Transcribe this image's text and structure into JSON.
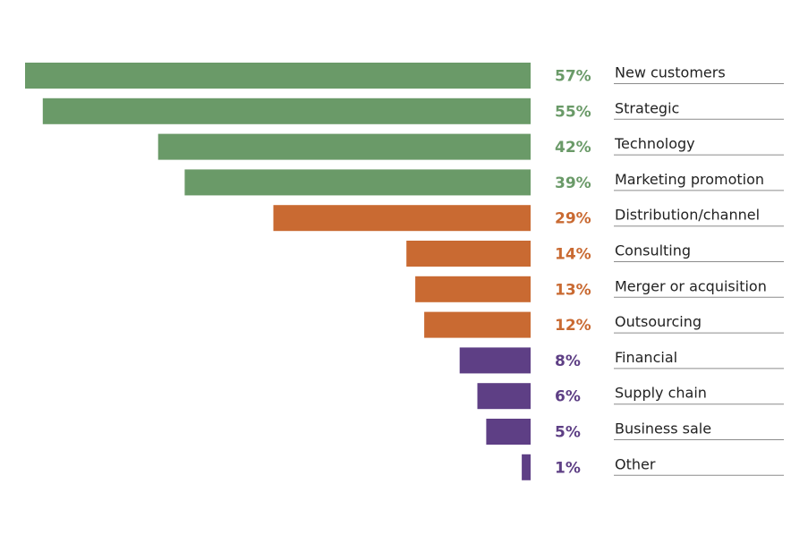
{
  "chart_data": {
    "type": "bar",
    "orientation": "horizontal",
    "title": "",
    "xlabel": "",
    "ylabel": "",
    "xlim": [
      0,
      57
    ],
    "grid": false,
    "legend": "none",
    "categories": [
      "New customers",
      "Strategic",
      "Technology",
      "Marketing promotion",
      "Distribution/channel",
      "Consulting",
      "Merger or acquisition",
      "Outsourcing",
      "Financial",
      "Supply chain",
      "Business sale",
      "Other"
    ],
    "values": [
      57,
      55,
      42,
      39,
      29,
      14,
      13,
      12,
      8,
      6,
      5,
      1
    ],
    "value_labels": [
      "57%",
      "55%",
      "42%",
      "39%",
      "29%",
      "14%",
      "13%",
      "12%",
      "8%",
      "6%",
      "5%",
      "1%"
    ],
    "groups": [
      0,
      0,
      0,
      0,
      1,
      1,
      1,
      1,
      2,
      2,
      2,
      2
    ],
    "group_colors": [
      "#6a9a68",
      "#c96a32",
      "#5e3f85"
    ]
  }
}
